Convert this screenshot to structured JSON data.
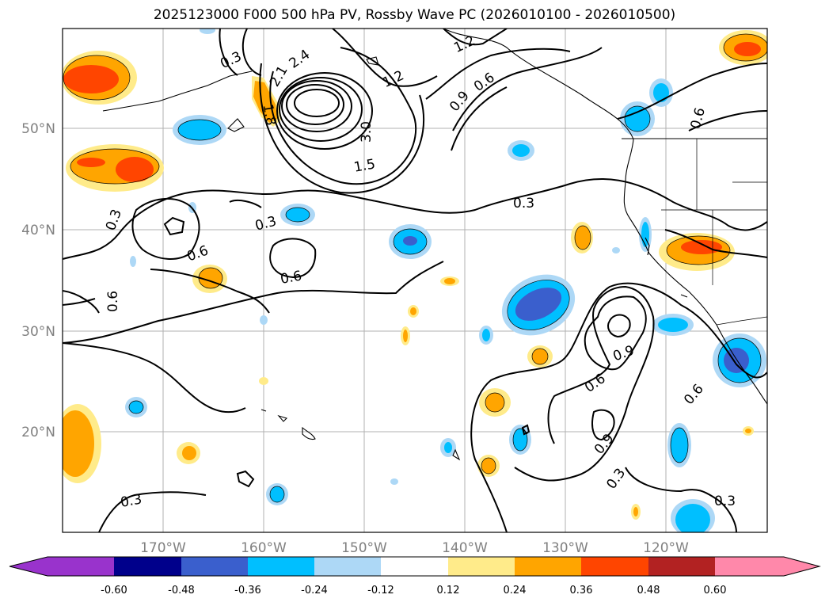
{
  "title": "2025123000 F000 500 hPa PV, Rossby Wave PC (2026010100 - 2026010500)",
  "x_ticks": [
    "170°W",
    "160°W",
    "150°W",
    "140°W",
    "130°W",
    "120°W"
  ],
  "y_ticks": [
    "50°N",
    "40°N",
    "30°N",
    "20°N"
  ],
  "colorbar": {
    "colors": [
      "#9933cc",
      "#00008b",
      "#3a5fcd",
      "#00bfff",
      "#add8f6",
      "#ffffff",
      "#ffeb8a",
      "#ffa500",
      "#ff4500",
      "#b22222",
      "#ff88aa"
    ],
    "labels": [
      "-0.60",
      "-0.48",
      "-0.36",
      "-0.24",
      "-0.12",
      "0.12",
      "0.24",
      "0.36",
      "0.48",
      "0.60"
    ]
  },
  "contour_labels": {
    "nw_0_3": "0.3",
    "north_1_2": "1.2",
    "ne_1_2": "1.2",
    "c_0_9": "0.9",
    "c_0_6": "0.6",
    "low_3_0": "3.0",
    "low_1_5": "1.5",
    "low_1_8": "1.8",
    "low_2_4": "2.4",
    "low_2_1": "2.1",
    "low_0_1": "0.1",
    "w_0_3": "0.3",
    "w_0_6": "0.6",
    "mid_0_3": "0.3",
    "mid_0_6": "0.6",
    "e_0_3": "0.3",
    "far_w_0_6": "0.6",
    "ne_0_6": "0.6",
    "se_0_9a": "0.9",
    "se_0_6a": "0.6",
    "se_0_6b": "0.6",
    "se_0_9b": "0.9",
    "se_0_3": "0.3",
    "sw_0_3": "0.3",
    "se_0_3b": "0.3"
  },
  "colors": {
    "frame": "#000000",
    "grid": "#b0b0b0"
  }
}
